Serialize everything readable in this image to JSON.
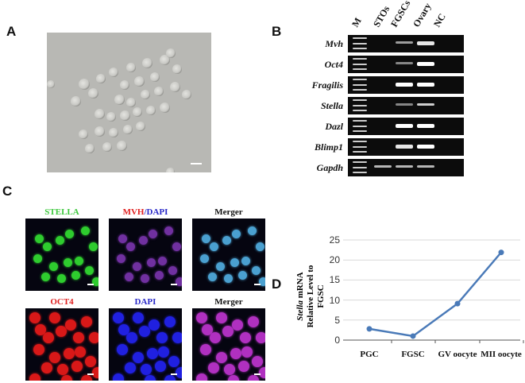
{
  "panels": {
    "A": {
      "label": "A"
    },
    "B": {
      "label": "B",
      "lanes": [
        "M",
        "STOs",
        "FGSCs",
        "Ovary",
        "NC"
      ],
      "genes": [
        "Mvh",
        "Oct4",
        "Fragilis",
        "Stella",
        "Dazl",
        "Blimp1",
        "Gapdh"
      ]
    },
    "C": {
      "label": "C",
      "row1": {
        "t1": "STELLA",
        "t2a": "MVH",
        "t2b": "/",
        "t2c": "DAPI",
        "t3": "Merger"
      },
      "row2": {
        "t1": "OCT4",
        "t2": "DAPI",
        "t3": "Merger"
      }
    },
    "D": {
      "label": "D",
      "ylabel_italic": "Stella",
      "ylabel_rest": " mRNA",
      "ylabel_line2": "Relative Level to FGSC"
    }
  },
  "chart_data": {
    "type": "line",
    "categories": [
      "PGC",
      "FGSC",
      "GV oocyte",
      "MII oocyte"
    ],
    "series": [
      {
        "name": "Stella mRNA",
        "values": [
          2.8,
          1.0,
          9.1,
          21.9
        ]
      }
    ],
    "ylabel": "Stella mRNA Relative Level to FGSC",
    "xlabel": "",
    "ylim": [
      0,
      25
    ],
    "yticks": [
      0,
      5,
      10,
      15,
      20,
      25
    ],
    "grid": true,
    "color": "#4a7ab8"
  }
}
